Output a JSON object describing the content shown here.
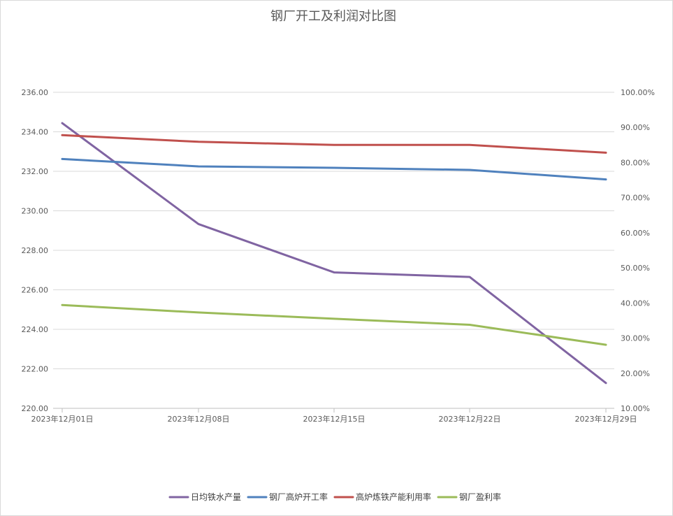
{
  "chart_data": {
    "type": "line",
    "title": "钢厂开工及利润对比图",
    "categories": [
      "2023年12月01日",
      "2023年12月08日",
      "2023年12月15日",
      "2023年12月22日",
      "2023年12月29日"
    ],
    "y_left": {
      "min": 220,
      "max": 236,
      "step": 2,
      "tick_labels": [
        "220.00",
        "222.00",
        "224.00",
        "226.00",
        "228.00",
        "230.00",
        "232.00",
        "234.00",
        "236.00"
      ]
    },
    "y_right": {
      "min": 10,
      "max": 100,
      "step": 10,
      "tick_labels": [
        "10.00%",
        "20.00%",
        "30.00%",
        "40.00%",
        "50.00%",
        "60.00%",
        "70.00%",
        "80.00%",
        "90.00%",
        "100.00%"
      ]
    },
    "series": [
      {
        "name": "日均铁水产量",
        "axis": "left",
        "color": "#8064a2",
        "values": [
          234.44,
          229.33,
          226.88,
          226.65,
          221.28
        ]
      },
      {
        "name": "钢厂高炉开工率",
        "axis": "right",
        "color": "#4f81bd",
        "values": [
          81.0,
          78.9,
          78.5,
          77.9,
          75.2
        ]
      },
      {
        "name": "高炉炼铁产能利用率",
        "axis": "right",
        "color": "#c0504d",
        "values": [
          87.8,
          85.9,
          85.0,
          85.0,
          82.8
        ]
      },
      {
        "name": "钢厂盈利率",
        "axis": "right",
        "color": "#9bbb59",
        "values": [
          39.4,
          37.3,
          35.5,
          33.8,
          28.1
        ]
      }
    ],
    "grid": true,
    "legend_position": "bottom"
  }
}
